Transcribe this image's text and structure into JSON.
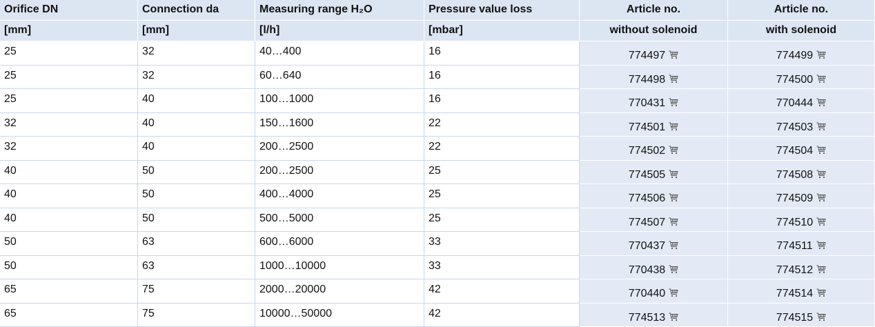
{
  "table": {
    "header": [
      [
        "Orifice DN",
        "Connection da",
        "Measuring range H₂O",
        "Pressure value loss",
        "Article no.",
        "Article no."
      ],
      [
        "[mm]",
        "[mm]",
        "[l/h]",
        "[mbar]",
        "without solenoid",
        "with solenoid"
      ]
    ],
    "rows": [
      [
        "25",
        "32",
        "40…400",
        "16",
        "774497",
        "774499"
      ],
      [
        "25",
        "32",
        "60…640",
        "16",
        "774498",
        "774500"
      ],
      [
        "25",
        "40",
        "100…1000",
        "16",
        "770431",
        "770444"
      ],
      [
        "32",
        "40",
        "150…1600",
        "22",
        "774501",
        "774503"
      ],
      [
        "32",
        "40",
        "200…2500",
        "22",
        "774502",
        "774504"
      ],
      [
        "40",
        "50",
        "200…2500",
        "25",
        "774505",
        "774508"
      ],
      [
        "40",
        "50",
        "400…4000",
        "25",
        "774506",
        "774509"
      ],
      [
        "40",
        "50",
        "500…5000",
        "25",
        "774507",
        "774510"
      ],
      [
        "50",
        "63",
        "600…6000",
        "33",
        "770437",
        "774511"
      ],
      [
        "50",
        "63",
        "1000…10000",
        "33",
        "770438",
        "774512"
      ],
      [
        "65",
        "75",
        "2000…20000",
        "42",
        "770440",
        "774514"
      ],
      [
        "65",
        "75",
        "10000…50000",
        "42",
        "774513",
        "774515"
      ]
    ]
  }
}
